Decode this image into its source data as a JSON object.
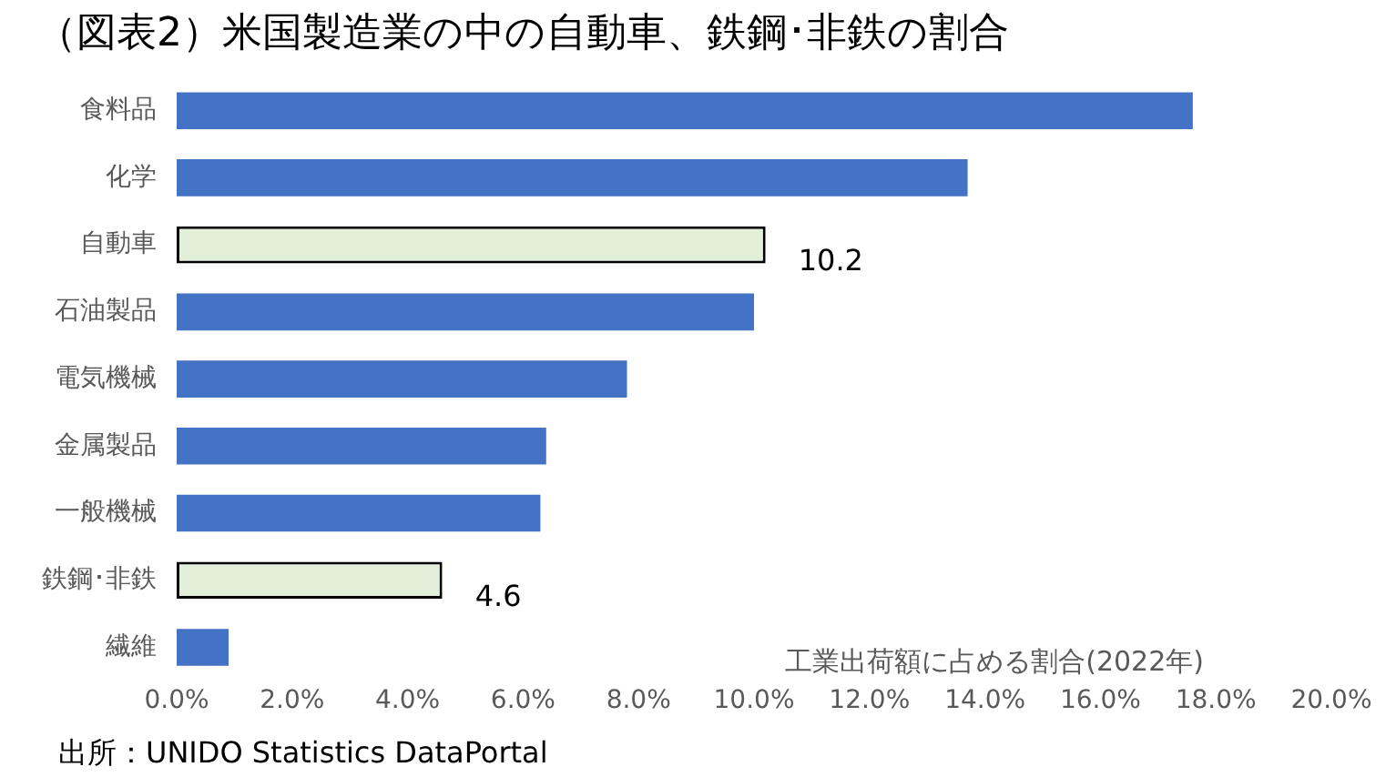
{
  "chart_data": {
    "type": "bar",
    "orientation": "horizontal",
    "title": "（図表2）米国製造業の中の自動車、鉄鋼･非鉄の割合",
    "categories": [
      "食料品",
      "化学",
      "自動車",
      "石油製品",
      "電気機械",
      "金属製品",
      "一般機械",
      "鉄鋼･非鉄",
      "繊維"
    ],
    "values": [
      17.6,
      13.7,
      10.2,
      10.0,
      7.8,
      6.4,
      6.3,
      4.6,
      0.9
    ],
    "colors": [
      "#4472c4",
      "#4472c4",
      "#e2f0d9",
      "#4472c4",
      "#4472c4",
      "#4472c4",
      "#4472c4",
      "#e2f0d9",
      "#4472c4"
    ],
    "value_labels": [
      null,
      null,
      "10.2",
      null,
      null,
      null,
      null,
      "4.6",
      null
    ],
    "xlim": [
      0,
      20
    ],
    "xticks": [
      {
        "value": 0,
        "label": "0.0%"
      },
      {
        "value": 2,
        "label": "2.0%"
      },
      {
        "value": 4,
        "label": "4.0%"
      },
      {
        "value": 6,
        "label": "6.0%"
      },
      {
        "value": 8,
        "label": "8.0%"
      },
      {
        "value": 10,
        "label": "10.0%"
      },
      {
        "value": 12,
        "label": "12.0%"
      },
      {
        "value": 14,
        "label": "14.0%"
      },
      {
        "value": 16,
        "label": "16.0%"
      },
      {
        "value": 18,
        "label": "18.0%"
      },
      {
        "value": 20,
        "label": "20.0%"
      }
    ],
    "grid": false,
    "legend": false,
    "annotations": [
      "工業出荷額に占める割合(2022年)",
      "出所：UNIDO Statistics DataPortal"
    ]
  }
}
